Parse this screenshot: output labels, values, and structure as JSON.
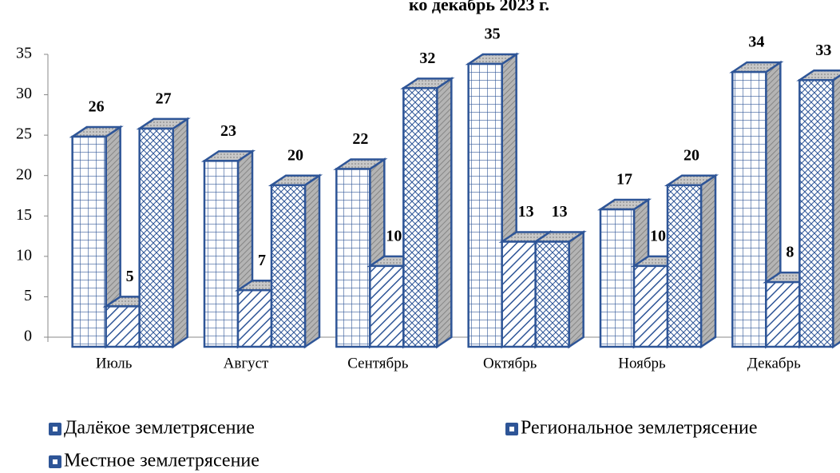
{
  "chart_data": {
    "type": "bar3d",
    "title": "ко декабрь 2023 г.",
    "categories": [
      "Июль",
      "Август",
      "Сентябрь",
      "Октябрь",
      "Ноябрь",
      "Декабрь"
    ],
    "series": [
      {
        "name": "Далёкое землетрясение",
        "color": "#2e5597",
        "values": [
          26,
          23,
          22,
          35,
          17,
          34
        ]
      },
      {
        "name": "Региональное землетрясение",
        "color": "#2e5597",
        "values": [
          5,
          7,
          10,
          13,
          10,
          8
        ]
      },
      {
        "name": "Местное землетрясение",
        "color": "#2e5597",
        "values": [
          27,
          20,
          32,
          13,
          20,
          33
        ]
      }
    ],
    "ylim": [
      0,
      35
    ],
    "yticks": [
      0,
      5,
      10,
      15,
      20,
      25,
      30,
      35
    ]
  }
}
